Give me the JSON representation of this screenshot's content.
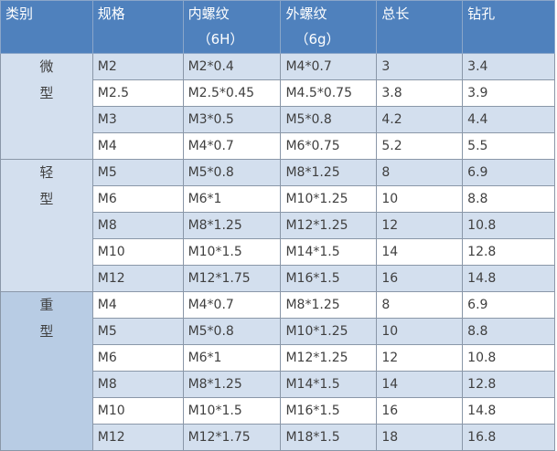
{
  "header": {
    "category": "类别",
    "spec": "规格",
    "internal_thread": "内螺纹",
    "internal_thread_sub": "（6H）",
    "external_thread": "外螺纹",
    "external_thread_sub": "（6g）",
    "total_length": "总长",
    "drill_hole": "钻孔"
  },
  "groups": [
    {
      "label_chars": [
        "微",
        "型"
      ],
      "rows": [
        [
          "M2",
          "M2*0.4",
          "M4*0.7",
          "3",
          "3.4"
        ],
        [
          "M2.5",
          "M2.5*0.45",
          "M4.5*0.75",
          "3.8",
          "3.9"
        ],
        [
          "M3",
          "M3*0.5",
          "M5*0.8",
          "4.2",
          "4.4"
        ],
        [
          "M4",
          "M4*0.7",
          "M6*0.75",
          "5.2",
          "5.5"
        ]
      ]
    },
    {
      "label_chars": [
        "轻",
        "型"
      ],
      "rows": [
        [
          "M5",
          "M5*0.8",
          "M8*1.25",
          "8",
          "6.9"
        ],
        [
          "M6",
          "M6*1",
          "M10*1.25",
          "10",
          "8.8"
        ],
        [
          "M8",
          "M8*1.25",
          "M12*1.25",
          "12",
          "10.8"
        ],
        [
          "M10",
          "M10*1.5",
          "M14*1.5",
          "14",
          "12.8"
        ],
        [
          "M12",
          "M12*1.75",
          "M16*1.5",
          "16",
          "14.8"
        ]
      ]
    },
    {
      "label_chars": [
        "重",
        "型"
      ],
      "rows": [
        [
          "M4",
          "M4*0.7",
          "M8*1.25",
          "8",
          "6.9"
        ],
        [
          "M5",
          "M5*0.8",
          "M10*1.25",
          "10",
          "8.8"
        ],
        [
          "M6",
          "M6*1",
          "M12*1.25",
          "12",
          "10.8"
        ],
        [
          "M8",
          "M8*1.25",
          "M14*1.5",
          "14",
          "12.8"
        ],
        [
          "M10",
          "M10*1.5",
          "M16*1.5",
          "16",
          "14.8"
        ],
        [
          "M12",
          "M12*1.75",
          "M18*1.5",
          "18",
          "16.8"
        ]
      ]
    }
  ],
  "colors": {
    "header": "#4f81bd",
    "band": "#d3dfee",
    "heavy_category": "#b8cce4"
  }
}
